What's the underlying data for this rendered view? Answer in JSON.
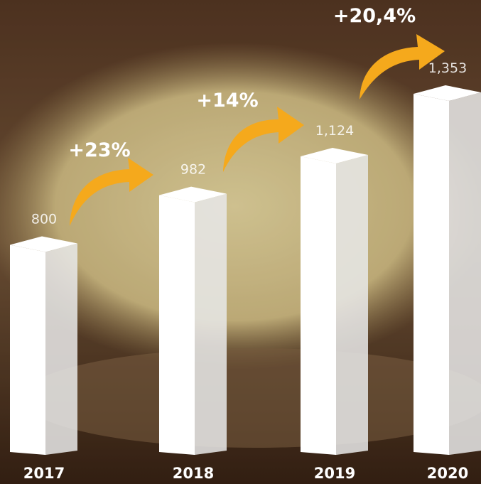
{
  "chart_data": {
    "type": "bar",
    "categories": [
      "2017",
      "2018",
      "2019",
      "2020"
    ],
    "values": [
      800,
      982,
      1124,
      1353
    ],
    "value_labels": [
      "800",
      "982",
      "1,124",
      "1,353"
    ],
    "annotations": [
      "+23%",
      "+14%",
      "+20,4%"
    ],
    "color": "#ffffff"
  }
}
